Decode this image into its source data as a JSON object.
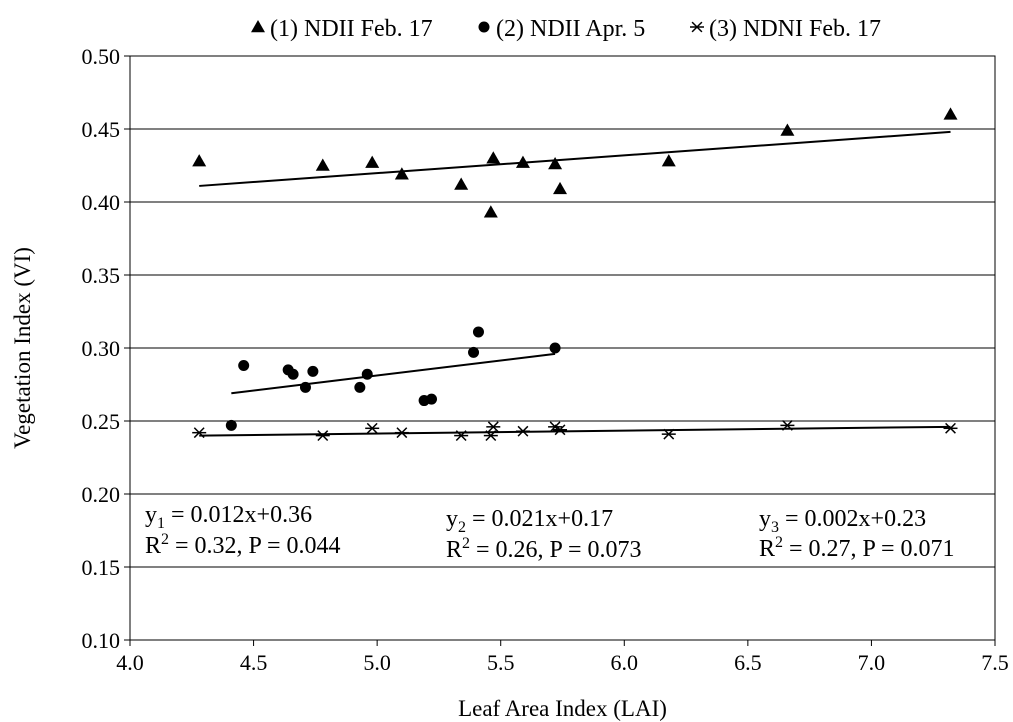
{
  "chart_data": {
    "type": "scatter",
    "title": "",
    "xlabel": "Leaf Area Index (LAI)",
    "ylabel": "Vegetation Index (VI)",
    "xlim": [
      4.0,
      7.5
    ],
    "ylim": [
      0.1,
      0.5
    ],
    "xticks": [
      "4.0",
      "4.5",
      "5.0",
      "5.5",
      "6.0",
      "6.5",
      "7.0",
      "7.5"
    ],
    "yticks": [
      "0.10",
      "0.15",
      "0.20",
      "0.25",
      "0.30",
      "0.35",
      "0.40",
      "0.45",
      "0.50"
    ],
    "grid": "horizontal",
    "legend_position": "top",
    "series": [
      {
        "name": "(1) NDII Feb. 17",
        "marker": "triangle",
        "color": "#000000",
        "points": [
          [
            4.28,
            0.428
          ],
          [
            4.78,
            0.425
          ],
          [
            4.98,
            0.427
          ],
          [
            5.1,
            0.419
          ],
          [
            5.34,
            0.412
          ],
          [
            5.46,
            0.393
          ],
          [
            5.47,
            0.43
          ],
          [
            5.59,
            0.427
          ],
          [
            5.72,
            0.426
          ],
          [
            5.74,
            0.409
          ],
          [
            6.18,
            0.428
          ],
          [
            6.66,
            0.449
          ],
          [
            7.32,
            0.46
          ]
        ],
        "trendline": {
          "x": [
            4.28,
            7.32
          ],
          "y": [
            0.411,
            0.448
          ]
        }
      },
      {
        "name": "(2) NDII Apr. 5",
        "marker": "circle",
        "color": "#000000",
        "points": [
          [
            4.41,
            0.247
          ],
          [
            4.46,
            0.288
          ],
          [
            4.64,
            0.285
          ],
          [
            4.66,
            0.282
          ],
          [
            4.71,
            0.273
          ],
          [
            4.74,
            0.284
          ],
          [
            4.93,
            0.273
          ],
          [
            4.96,
            0.282
          ],
          [
            5.19,
            0.264
          ],
          [
            5.22,
            0.265
          ],
          [
            5.39,
            0.297
          ],
          [
            5.41,
            0.311
          ],
          [
            5.72,
            0.3
          ]
        ],
        "trendline": {
          "x": [
            4.41,
            5.72
          ],
          "y": [
            0.269,
            0.296
          ]
        }
      },
      {
        "name": "(3) NDNI Feb. 17",
        "marker": "asterisk",
        "color": "#000000",
        "points": [
          [
            4.28,
            0.242
          ],
          [
            4.78,
            0.24
          ],
          [
            4.98,
            0.245
          ],
          [
            5.1,
            0.242
          ],
          [
            5.34,
            0.24
          ],
          [
            5.46,
            0.24
          ],
          [
            5.47,
            0.246
          ],
          [
            5.59,
            0.243
          ],
          [
            5.72,
            0.246
          ],
          [
            5.74,
            0.244
          ],
          [
            6.18,
            0.241
          ],
          [
            6.66,
            0.247
          ],
          [
            7.32,
            0.245
          ]
        ],
        "trendline": {
          "x": [
            4.28,
            7.32
          ],
          "y": [
            0.24,
            0.246
          ]
        }
      }
    ],
    "equations": [
      {
        "line1_pre": "y",
        "line1_sub": "1",
        "line1_post": " = 0.012x+0.36",
        "line2_pre": "R",
        "line2_sup": "2",
        "line2_post": " = 0.32, P = 0.044"
      },
      {
        "line1_pre": "y",
        "line1_sub": "2",
        "line1_post": " = 0.021x+0.17",
        "line2_pre": "R",
        "line2_sup": "2",
        "line2_post": " = 0.26, P = 0.073"
      },
      {
        "line1_pre": "y",
        "line1_sub": "3",
        "line1_post": " = 0.002x+0.23",
        "line2_pre": "R",
        "line2_sup": "2",
        "line2_post": " = 0.27, P = 0.071"
      }
    ]
  }
}
